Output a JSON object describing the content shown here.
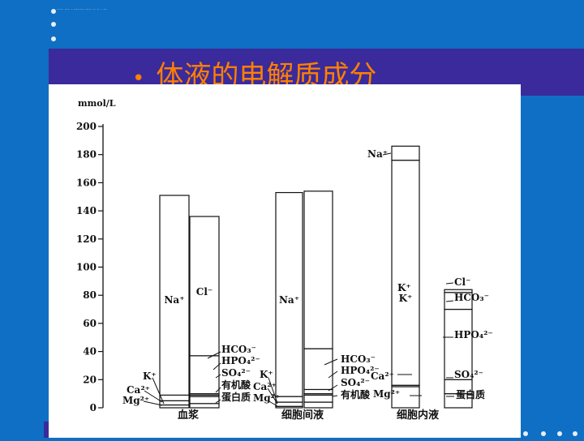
{
  "slide": {
    "bullet": "•",
    "title": "体液的电解质成分",
    "header_tiny_text": "····· ···· · ········ ····· ·· ·· · ···"
  },
  "colors": {
    "background": "#0e6fc4",
    "header_band": "#3a2a9c",
    "title": "#ff7f00",
    "chart_bg": "#ffffff"
  },
  "chart_data": {
    "type": "bar",
    "title": "",
    "ylabel": "mmol/L",
    "ylim": [
      0,
      200
    ],
    "yticks": [
      0,
      20,
      40,
      60,
      80,
      100,
      120,
      140,
      160,
      180,
      200
    ],
    "categories": [
      "血浆",
      "细胞间液",
      "细胞内液"
    ],
    "columns": [
      {
        "group": "血浆",
        "side": "cation",
        "total": 151,
        "segments": [
          {
            "label": "Na⁺",
            "value": 142
          },
          {
            "label": "K⁺",
            "value": 4
          },
          {
            "label": "Ca²⁺",
            "value": 3
          },
          {
            "label": "Mg²⁺",
            "value": 2
          }
        ]
      },
      {
        "group": "血浆",
        "side": "anion",
        "total": 136,
        "segments": [
          {
            "label": "Cl⁻",
            "value": 99
          },
          {
            "label": "HCO₃⁻",
            "value": 27
          },
          {
            "label": "HPO₄²⁻",
            "value": 1
          },
          {
            "label": "SO₄²⁻",
            "value": 1
          },
          {
            "label": "有机酸",
            "value": 5
          },
          {
            "label": "蛋白质",
            "value": 3
          }
        ]
      },
      {
        "group": "细胞间液",
        "side": "cation",
        "total": 153,
        "segments": [
          {
            "label": "Na⁺",
            "value": 145
          },
          {
            "label": "K⁺",
            "value": 4
          },
          {
            "label": "Ca²⁺",
            "value": 3
          },
          {
            "label": "Mg²⁺",
            "value": 1
          }
        ]
      },
      {
        "group": "细胞间液",
        "side": "anion",
        "total": 154,
        "segments": [
          {
            "label": "Cl⁻",
            "value": 112
          },
          {
            "label": "HCO₃⁻",
            "value": 29
          },
          {
            "label": "HPO₄²⁻",
            "value": 3
          },
          {
            "label": "SO₄²⁻",
            "value": 1
          },
          {
            "label": "有机酸",
            "value": 5
          },
          {
            "label": "蛋白质",
            "value": 4
          }
        ]
      },
      {
        "group": "细胞内液",
        "side": "cation",
        "total": 186,
        "segments": [
          {
            "label": "Na⁺",
            "value": 10
          },
          {
            "label": "K⁺",
            "value": 160
          },
          {
            "label": "Ca²⁺",
            "value": 1
          },
          {
            "label": "Mg²⁺",
            "value": 15
          }
        ]
      },
      {
        "group": "细胞内液",
        "side": "anion",
        "total": 84,
        "segments": [
          {
            "label": "Cl⁻",
            "value": 2
          },
          {
            "label": "HCO₃⁻",
            "value": 12
          },
          {
            "label": "HPO₄²⁻",
            "value": 50
          },
          {
            "label": "SO₄²⁻",
            "value": 10
          },
          {
            "label": "蛋白质",
            "value": 10
          }
        ]
      }
    ]
  }
}
